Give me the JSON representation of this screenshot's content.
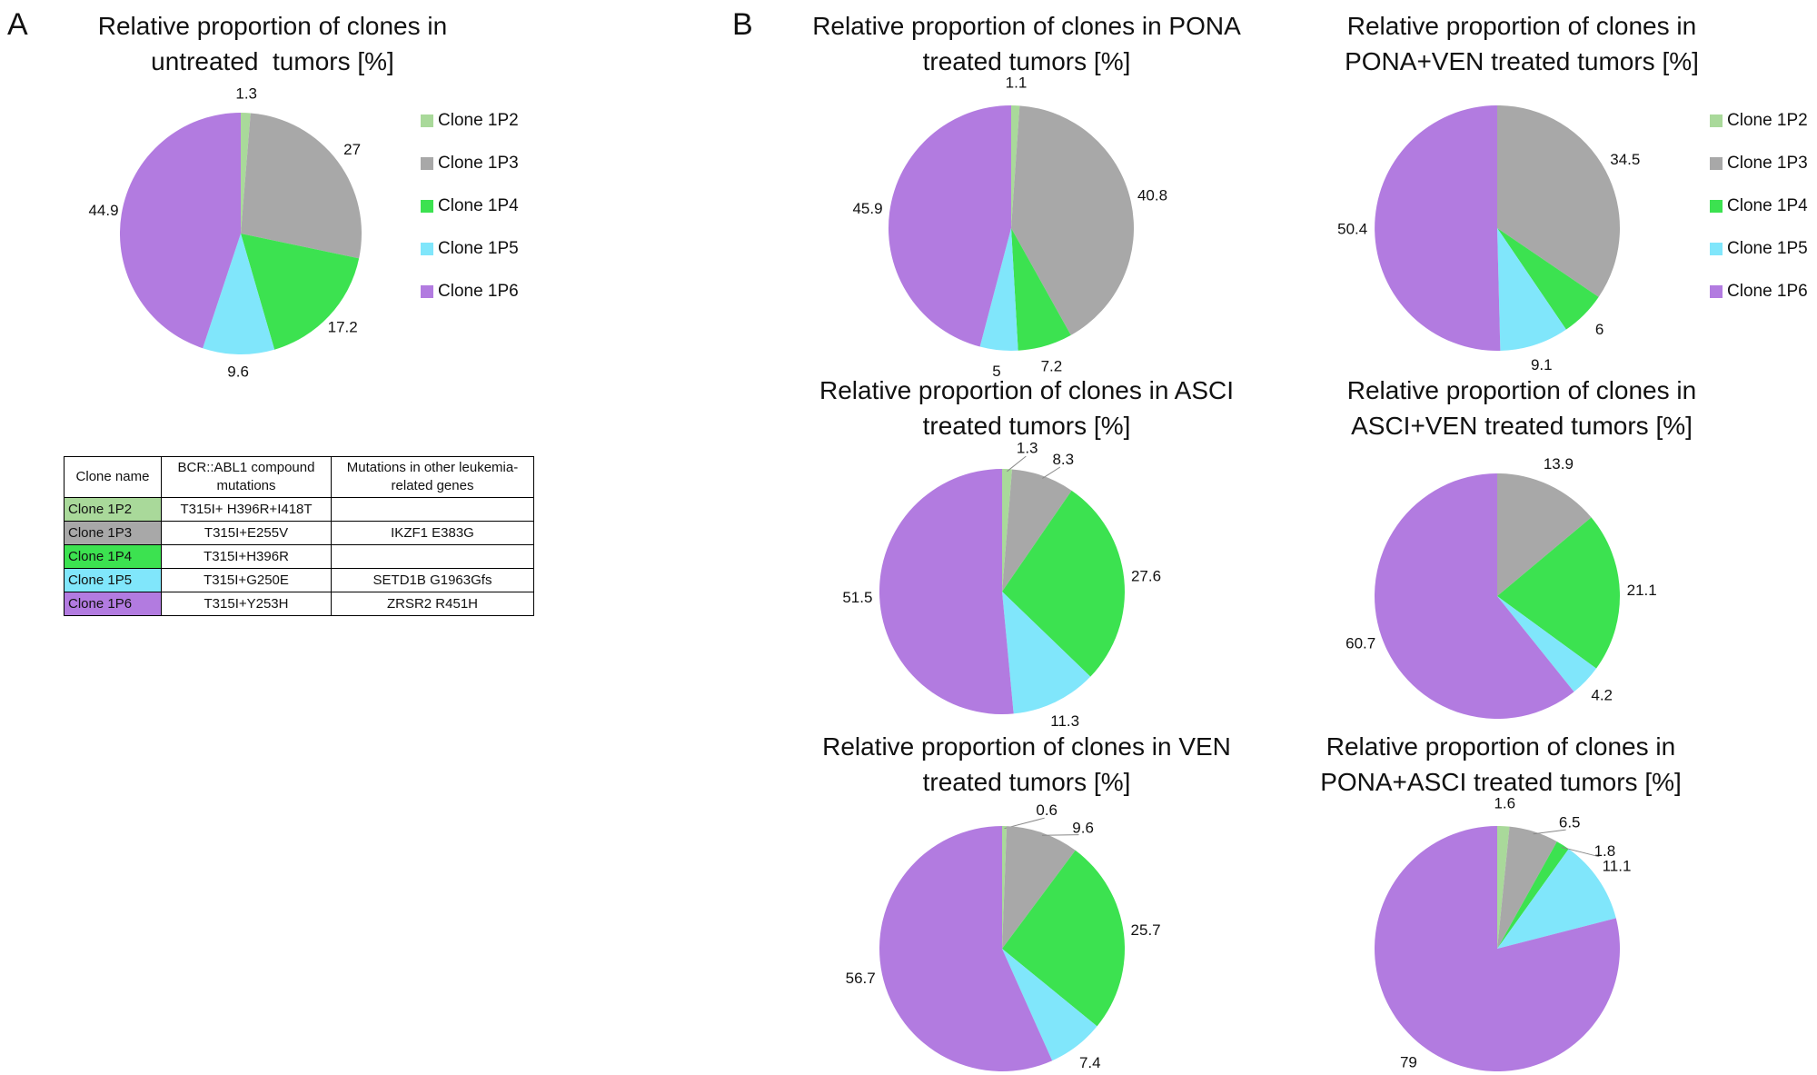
{
  "panels": {
    "a": "A",
    "b": "B"
  },
  "colors": {
    "Clone 1P2": "#a9d99a",
    "Clone 1P3": "#a8a8a8",
    "Clone 1P4": "#3ce250",
    "Clone 1P5": "#80e6fb",
    "Clone 1P6": "#b27be0"
  },
  "legend": [
    "Clone 1P2",
    "Clone 1P3",
    "Clone 1P4",
    "Clone 1P5",
    "Clone 1P6"
  ],
  "table": {
    "headers": [
      "Clone name",
      "BCR::ABL1 compound mutations",
      "Mutations in other leukemia-related genes"
    ],
    "rows": [
      [
        "Clone 1P2",
        "T315I+ H396R+I418T",
        ""
      ],
      [
        "Clone 1P3",
        "T315I+E255V",
        "IKZF1 E383G"
      ],
      [
        "Clone 1P4",
        "T315I+H396R",
        ""
      ],
      [
        "Clone 1P5",
        "T315I+G250E",
        "SETD1B G1963Gfs"
      ],
      [
        "Clone 1P6",
        "T315I+Y253H",
        "ZRSR2 R451H"
      ]
    ]
  },
  "chart_data": [
    {
      "type": "pie",
      "title": [
        "Relative proportion of clones in",
        "untreated  tumors [%]"
      ],
      "categories": [
        "Clone 1P2",
        "Clone 1P3",
        "Clone 1P4",
        "Clone 1P5",
        "Clone 1P6"
      ],
      "values": [
        1.3,
        27,
        17.2,
        9.6,
        44.9
      ],
      "legend": "right"
    },
    {
      "type": "pie",
      "title": [
        "Relative proportion of clones in PONA",
        "treated tumors [%]"
      ],
      "categories": [
        "Clone 1P2",
        "Clone 1P3",
        "Clone 1P4",
        "Clone 1P5",
        "Clone 1P6"
      ],
      "values": [
        1.1,
        40.8,
        7.2,
        5,
        45.9
      ]
    },
    {
      "type": "pie",
      "title": [
        "Relative proportion of clones in",
        "PONA+VEN treated tumors [%]"
      ],
      "categories": [
        "Clone 1P3",
        "Clone 1P4",
        "Clone 1P5",
        "Clone 1P6"
      ],
      "values": [
        34.5,
        6,
        9.1,
        50.4
      ],
      "legend": "right"
    },
    {
      "type": "pie",
      "title": [
        "Relative proportion of clones in ASCI",
        "treated tumors [%]"
      ],
      "categories": [
        "Clone 1P2",
        "Clone 1P3",
        "Clone 1P4",
        "Clone 1P5",
        "Clone 1P6"
      ],
      "values": [
        1.3,
        8.3,
        27.6,
        11.3,
        51.5
      ]
    },
    {
      "type": "pie",
      "title": [
        "Relative proportion of clones in",
        "ASCI+VEN treated tumors [%]"
      ],
      "categories": [
        "Clone 1P3",
        "Clone 1P4",
        "Clone 1P5",
        "Clone 1P6"
      ],
      "values": [
        13.9,
        21.1,
        4.2,
        60.7
      ]
    },
    {
      "type": "pie",
      "title": [
        "Relative proportion of clones in VEN",
        "treated tumors [%]"
      ],
      "categories": [
        "Clone 1P2",
        "Clone 1P3",
        "Clone 1P4",
        "Clone 1P5",
        "Clone 1P6"
      ],
      "values": [
        0.6,
        9.6,
        25.7,
        7.4,
        56.7
      ]
    },
    {
      "type": "pie",
      "title": [
        "Relative proportion of clones in",
        "PONA+ASCI treated tumors [%]"
      ],
      "categories": [
        "Clone 1P2",
        "Clone 1P3",
        "Clone 1P4",
        "Clone 1P5",
        "Clone 1P6"
      ],
      "values": [
        1.6,
        6.5,
        1.8,
        11.1,
        79
      ]
    }
  ]
}
